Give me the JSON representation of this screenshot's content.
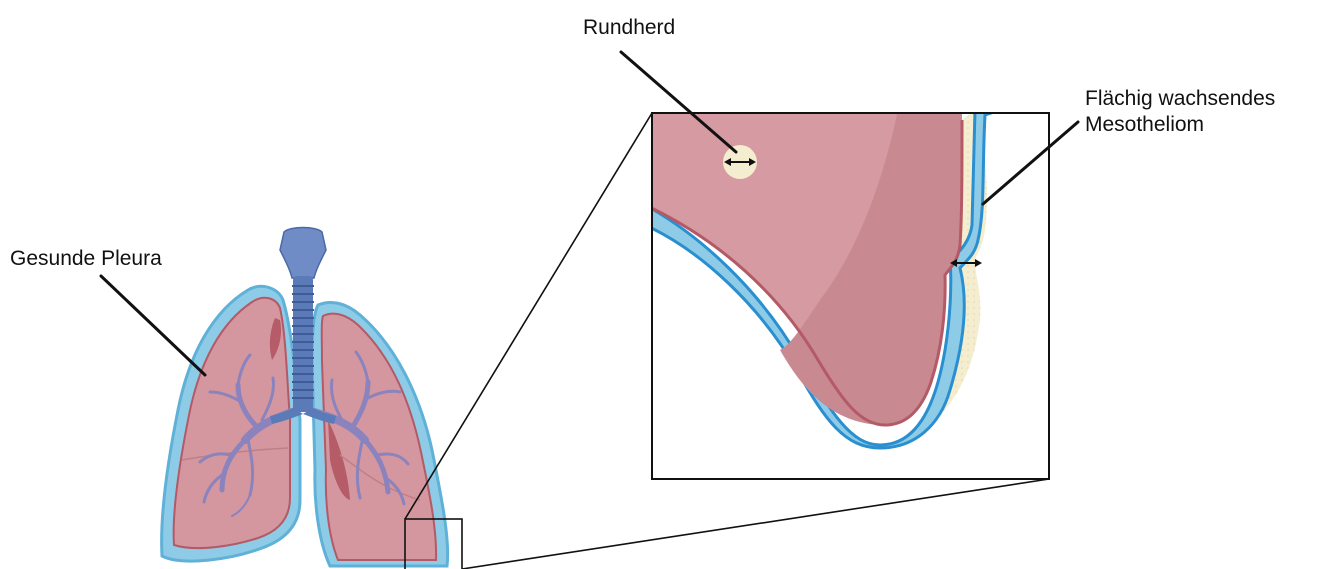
{
  "labels": {
    "rundherd": "Rundherd",
    "gesunde_pleura": "Gesunde Pleura",
    "mesotheliom_line1": "Flächig wachsendes",
    "mesotheliom_line2": "Mesotheliom"
  },
  "colors": {
    "pleura_blue": "#8ecbe6",
    "pleura_outline": "#2a8fd0",
    "lung_tissue": "#d4979f",
    "lung_tissue_dark": "#c28089",
    "lung_outline": "#b45a66",
    "trachea": "#5b7bb8",
    "bronchi": "#8a83bd",
    "tumor": "#f5edd0",
    "line": "#111111"
  }
}
